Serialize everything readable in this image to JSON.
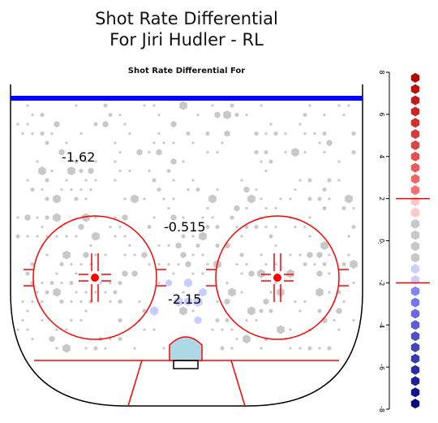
{
  "chart_data": {
    "type": "heatmap",
    "title_line1": "Shot Rate Differential",
    "title_line2": "For Jiri Hudler - RL",
    "subtitle": "Shot Rate Differential For",
    "zones": [
      {
        "name": "left-point",
        "value": "-1.62"
      },
      {
        "name": "slot",
        "value": "-0.515"
      },
      {
        "name": "crease",
        "value": "-2.15"
      }
    ],
    "legend": {
      "placement": "right",
      "range": [
        -8,
        8
      ],
      "ticks": [
        "8",
        "6",
        "4",
        "2",
        "0",
        "-2",
        "-4",
        "-6",
        "-8"
      ],
      "threshold_high": 2,
      "threshold_low": -2,
      "midlabel": ":"
    },
    "colors": {
      "goal_line": "#0000ff",
      "circles": "#ff0000",
      "crease": "#add8e6",
      "neutral_hex": "#c8c8c8",
      "cold_hex": "#c8ccff",
      "hot_high": "#b00000",
      "cold_low": "#00007a"
    }
  }
}
